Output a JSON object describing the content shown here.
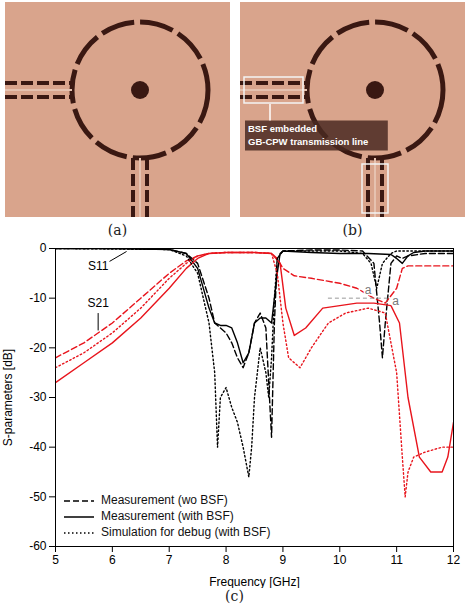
{
  "panels": [
    {
      "label": "(a)"
    },
    {
      "label": "(b)",
      "annotation": "BSF embedded GB-CPW transmission line"
    }
  ],
  "chart_data": {
    "type": "line",
    "caption": "(c)",
    "x_label": "Frequency [GHz]",
    "y_label": "S-parameters [dB]",
    "xlim": [
      5,
      12
    ],
    "xticks": [
      5,
      6,
      7,
      8,
      9,
      10,
      11,
      12
    ],
    "ylim": [
      -60,
      0
    ],
    "yticks": [
      -60,
      -50,
      -40,
      -30,
      -20,
      -10,
      0
    ],
    "grid": false,
    "legend": "bottom-left",
    "annotations": [
      "S11",
      "S21",
      "a",
      "a"
    ],
    "series": [
      {
        "name": "Measurement (wo BSF)",
        "parameter": "S11",
        "color": "#000000",
        "line_style": "dashed",
        "x": [
          5,
          6,
          7,
          7.3,
          7.5,
          7.7,
          7.8,
          7.9,
          8.0,
          8.1,
          8.2,
          8.3,
          8.4,
          8.5,
          8.6,
          8.7,
          8.8,
          8.85,
          8.9,
          9.0,
          9.5,
          10,
          10.4,
          10.6,
          10.7,
          10.75,
          10.8,
          10.9,
          11.0,
          11.1,
          11.2,
          11.5,
          12
        ],
        "values": [
          0,
          0,
          -0.2,
          -1,
          -3,
          -10,
          -15,
          -16,
          -17,
          -19,
          -22,
          -24,
          -21,
          -15,
          -13,
          -16,
          -38,
          -15,
          -2,
          -0.5,
          -0.3,
          -0.3,
          -0.5,
          -3,
          -15,
          -22,
          -15,
          -3,
          -1.5,
          -2,
          -1.5,
          -1,
          -1
        ]
      },
      {
        "name": "Measurement (wo BSF)",
        "parameter": "S21",
        "color": "#e8141c",
        "line_style": "dashed",
        "x": [
          5,
          5.5,
          6,
          6.5,
          7,
          7.3,
          7.5,
          7.7,
          8,
          8.5,
          8.8,
          8.9,
          9.0,
          9.2,
          9.5,
          10,
          10.3,
          10.6,
          10.8,
          11.0,
          11.1,
          11.2,
          11.5,
          12
        ],
        "values": [
          -22,
          -19,
          -15,
          -10,
          -5,
          -2.5,
          -1.5,
          -1,
          -0.8,
          -0.8,
          -1,
          -2,
          -4,
          -5.5,
          -6,
          -7,
          -8,
          -10,
          -11,
          -8,
          -4,
          -3.5,
          -3.5,
          -3.5
        ]
      },
      {
        "name": "Measurement (with BSF)",
        "parameter": "S11",
        "color": "#000000",
        "line_style": "solid",
        "x": [
          5,
          6,
          7,
          7.3,
          7.5,
          7.7,
          7.8,
          7.9,
          8.0,
          8.1,
          8.2,
          8.3,
          8.4,
          8.5,
          8.6,
          8.7,
          8.8,
          8.9,
          8.95,
          9.0,
          9.5,
          10,
          10.5,
          10.9,
          11.0,
          11.1,
          11.2,
          11.3,
          11.5,
          12
        ],
        "values": [
          0,
          0,
          -0.2,
          -1,
          -4,
          -12,
          -15,
          -15.5,
          -15.5,
          -16,
          -19,
          -23,
          -21,
          -15,
          -14,
          -14,
          -15,
          -5,
          -1,
          -0.5,
          -0.8,
          -1,
          -1,
          -1.2,
          -2,
          -3,
          -1.5,
          -0.8,
          -0.5,
          -0.5
        ]
      },
      {
        "name": "Measurement (with BSF)",
        "parameter": "S21",
        "color": "#e8141c",
        "line_style": "solid",
        "x": [
          5,
          5.5,
          6,
          6.5,
          7,
          7.3,
          7.5,
          7.7,
          8,
          8.5,
          8.8,
          8.95,
          9.05,
          9.2,
          9.4,
          9.7,
          10,
          10.3,
          10.6,
          10.9,
          11.05,
          11.2,
          11.4,
          11.6,
          11.8,
          11.9,
          12
        ],
        "values": [
          -27,
          -23,
          -19,
          -14,
          -8,
          -4,
          -2,
          -1,
          -0.8,
          -0.8,
          -1,
          -3,
          -12,
          -17.5,
          -16,
          -12,
          -11.5,
          -11,
          -11,
          -11.5,
          -15,
          -30,
          -42,
          -45,
          -45,
          -42,
          -35
        ]
      },
      {
        "name": "Simulation for debug (with BSF)",
        "parameter": "S11",
        "color": "#000000",
        "line_style": "dotted",
        "x": [
          5,
          7,
          7.3,
          7.5,
          7.7,
          7.8,
          7.85,
          7.9,
          8.0,
          8.1,
          8.2,
          8.3,
          8.4,
          8.45,
          8.5,
          8.6,
          8.7,
          8.75,
          8.8,
          8.85,
          8.9,
          9.0,
          9.5,
          10,
          10.4,
          10.55,
          10.65,
          10.75,
          10.9,
          11,
          12
        ],
        "values": [
          0,
          -0.2,
          -1.5,
          -5,
          -15,
          -25,
          -40,
          -30,
          -28,
          -32,
          -35,
          -40,
          -46,
          -40,
          -30,
          -20,
          -25,
          -30,
          -22,
          -10,
          -2,
          -0.5,
          -0.5,
          -0.5,
          -1,
          -3,
          -8,
          -3,
          -1,
          -0.5,
          -0.5
        ]
      },
      {
        "name": "Simulation for debug (with BSF)",
        "parameter": "S21",
        "color": "#e8141c",
        "line_style": "dotted",
        "x": [
          5,
          5.5,
          6,
          6.5,
          7,
          7.3,
          7.5,
          7.7,
          8,
          8.5,
          8.8,
          8.9,
          9.0,
          9.1,
          9.3,
          9.5,
          9.8,
          10.1,
          10.5,
          10.8,
          11.0,
          11.1,
          11.15,
          11.2,
          11.3,
          11.5,
          11.8,
          12
        ],
        "values": [
          -24,
          -21,
          -17,
          -12,
          -6,
          -3,
          -1.5,
          -1,
          -0.8,
          -0.8,
          -1,
          -5,
          -15,
          -22,
          -24,
          -20,
          -15,
          -13,
          -12,
          -13,
          -25,
          -42,
          -50,
          -45,
          -42,
          -41,
          -40,
          -40
        ]
      }
    ]
  }
}
